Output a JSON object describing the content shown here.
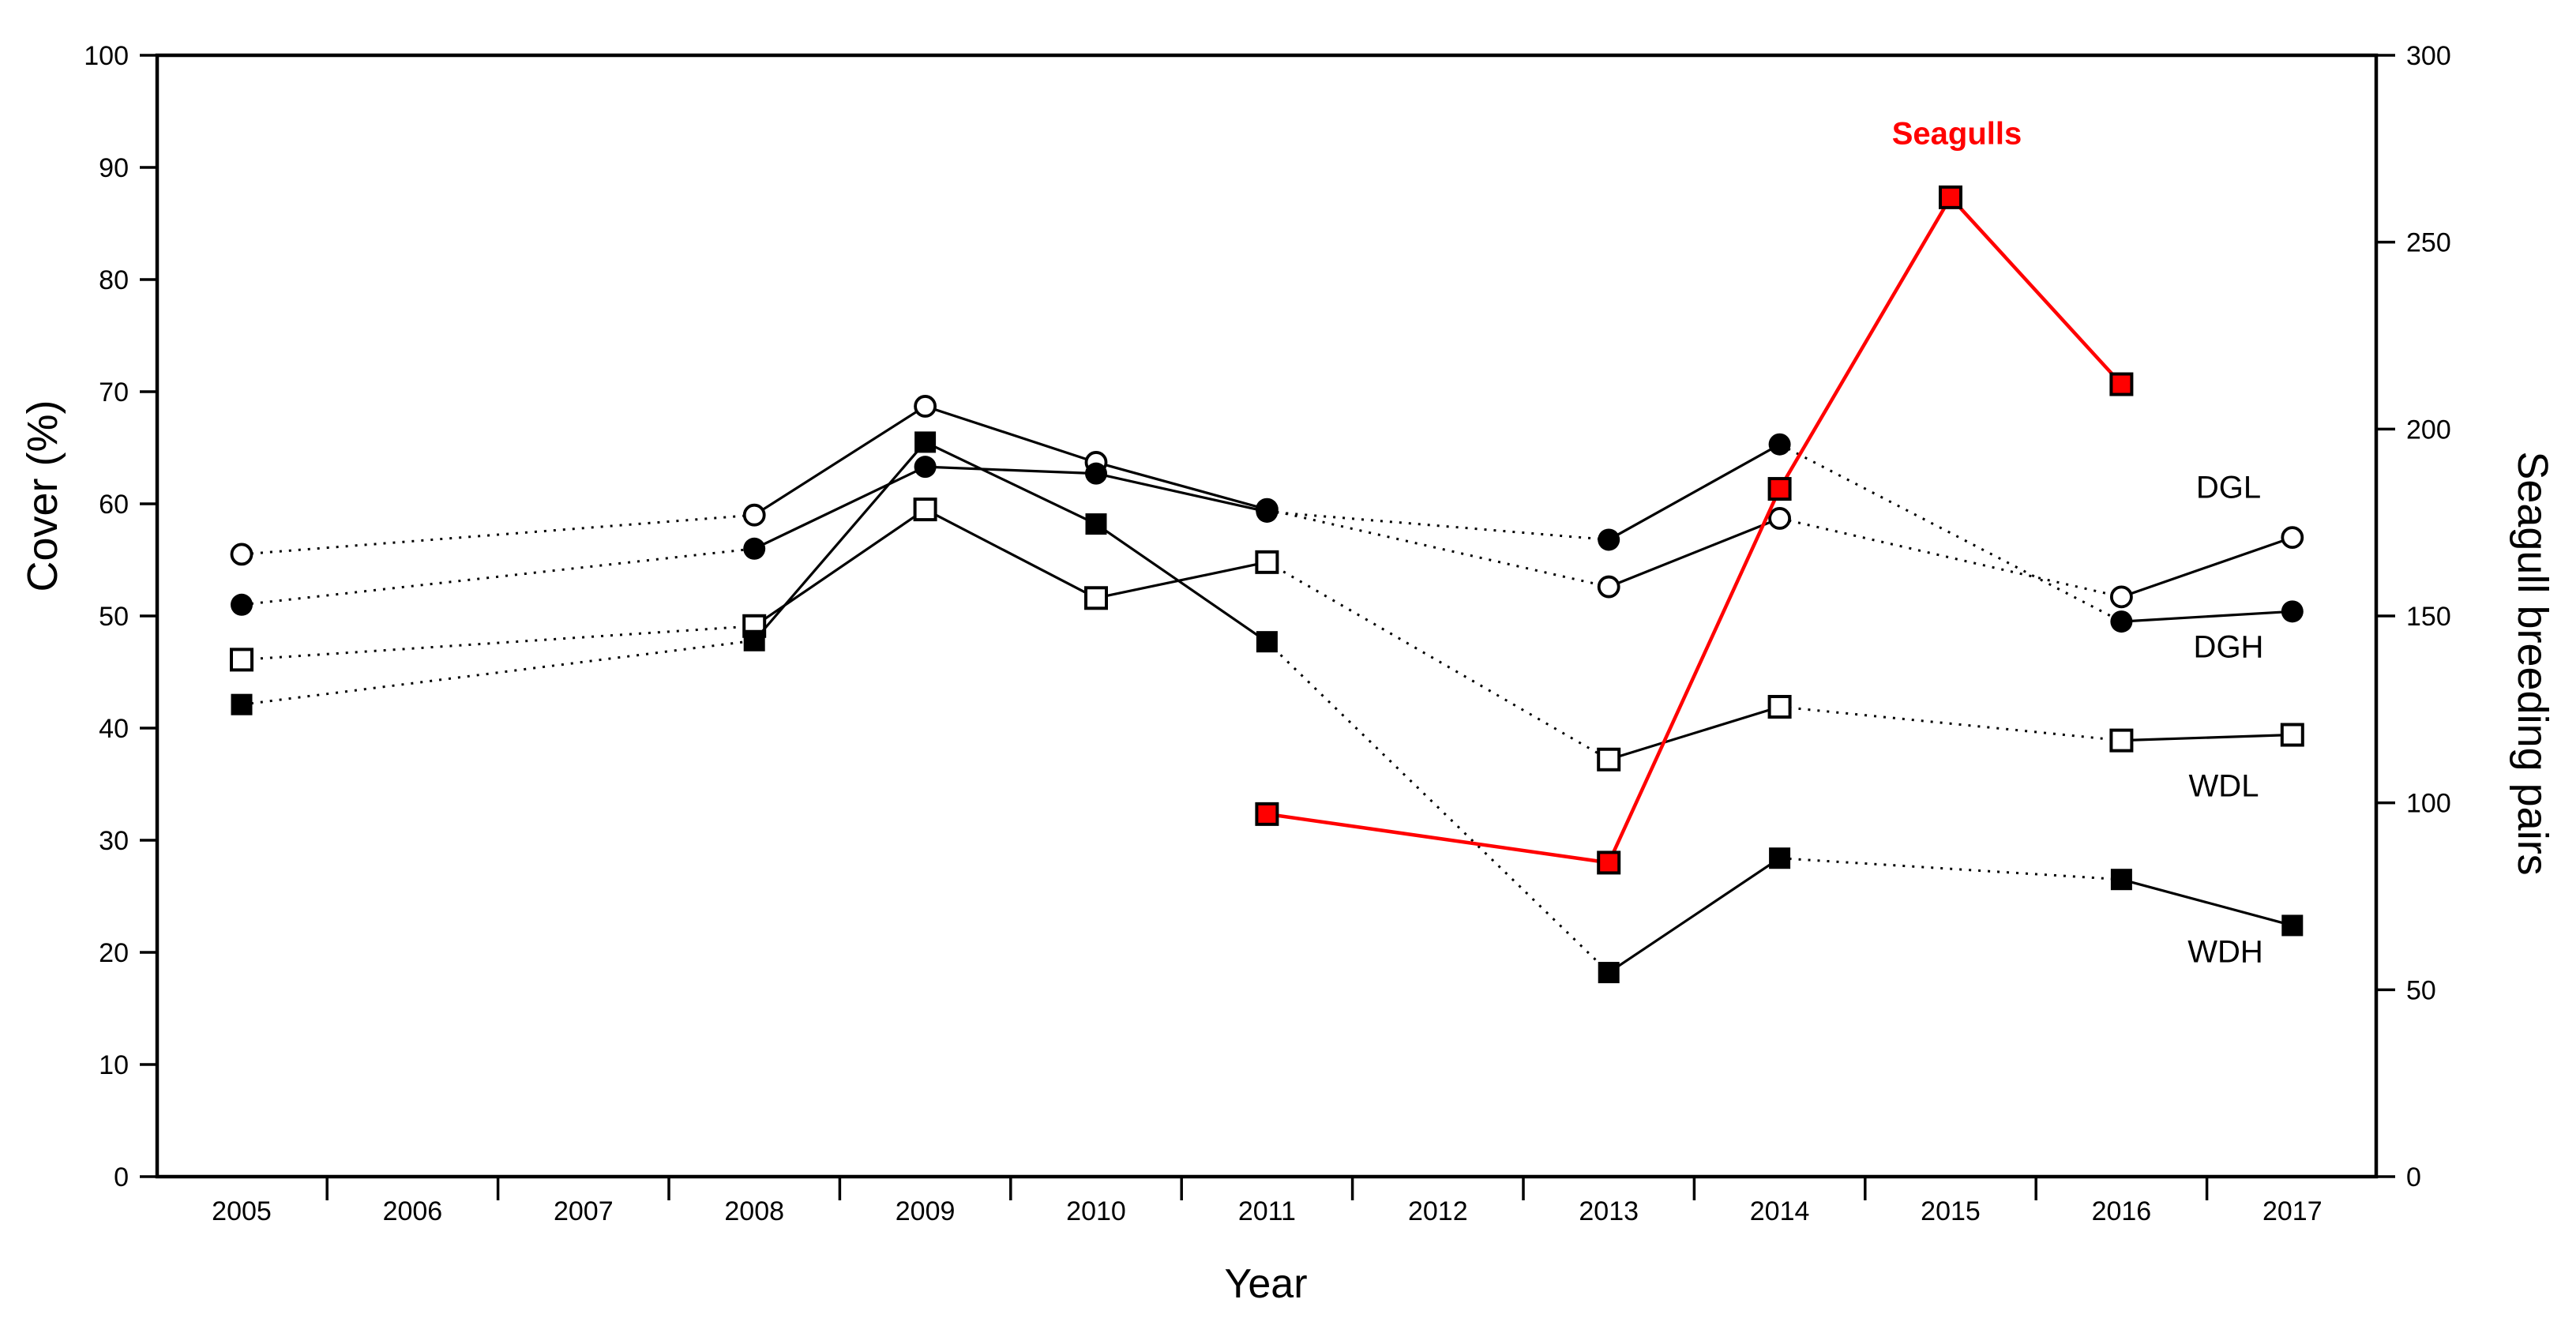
{
  "chart_data": {
    "type": "line",
    "title": "",
    "xlabel": "Year",
    "ylabel_left": "Cover (%)",
    "ylabel_right": "Seagull breeding pairs",
    "x_axis": {
      "years": [
        2005,
        2006,
        2007,
        2008,
        2009,
        2010,
        2011,
        2012,
        2013,
        2014,
        2015,
        2016,
        2017
      ],
      "tick_style": "between-years"
    },
    "left_axis": {
      "min": 0,
      "max": 100,
      "step": 10,
      "tick_labels": [
        "0",
        "10",
        "20",
        "30",
        "40",
        "50",
        "60",
        "70",
        "80",
        "90",
        "100"
      ]
    },
    "right_axis": {
      "min": 0,
      "max": 300,
      "step": 50,
      "tick_labels": [
        "0",
        "50",
        "100",
        "150",
        "200",
        "250",
        "300"
      ]
    },
    "legend_position": "inline-right-labels",
    "grid": false,
    "series": [
      {
        "name": "DGL",
        "axis": "left",
        "marker": "circle-open",
        "color": "#000000",
        "dotted_on_gaps": true,
        "points": [
          {
            "year": 2005,
            "value": 55.5
          },
          {
            "year": 2008,
            "value": 59.0
          },
          {
            "year": 2009,
            "value": 68.7
          },
          {
            "year": 2010,
            "value": 63.7
          },
          {
            "year": 2011,
            "value": 59.5
          },
          {
            "year": 2013,
            "value": 52.6
          },
          {
            "year": 2014,
            "value": 58.7
          },
          {
            "year": 2016,
            "value": 51.7
          },
          {
            "year": 2017,
            "value": 57.0
          }
        ]
      },
      {
        "name": "DGH",
        "axis": "left",
        "marker": "circle-filled",
        "color": "#000000",
        "dotted_on_gaps": true,
        "points": [
          {
            "year": 2005,
            "value": 51.0
          },
          {
            "year": 2008,
            "value": 56.0
          },
          {
            "year": 2009,
            "value": 63.3
          },
          {
            "year": 2010,
            "value": 62.7
          },
          {
            "year": 2011,
            "value": 59.3
          },
          {
            "year": 2013,
            "value": 56.8
          },
          {
            "year": 2014,
            "value": 65.3
          },
          {
            "year": 2016,
            "value": 49.5
          },
          {
            "year": 2017,
            "value": 50.4
          }
        ]
      },
      {
        "name": "WDL",
        "axis": "left",
        "marker": "square-open",
        "color": "#000000",
        "dotted_on_gaps": true,
        "points": [
          {
            "year": 2005,
            "value": 46.1
          },
          {
            "year": 2008,
            "value": 49.1
          },
          {
            "year": 2009,
            "value": 59.5
          },
          {
            "year": 2010,
            "value": 51.6
          },
          {
            "year": 2011,
            "value": 54.8
          },
          {
            "year": 2013,
            "value": 37.2
          },
          {
            "year": 2014,
            "value": 41.9
          },
          {
            "year": 2016,
            "value": 38.9
          },
          {
            "year": 2017,
            "value": 39.4
          }
        ]
      },
      {
        "name": "WDH",
        "axis": "left",
        "marker": "square-filled",
        "color": "#000000",
        "dotted_on_gaps": true,
        "points": [
          {
            "year": 2005,
            "value": 42.1
          },
          {
            "year": 2008,
            "value": 47.8
          },
          {
            "year": 2009,
            "value": 65.5
          },
          {
            "year": 2010,
            "value": 58.2
          },
          {
            "year": 2011,
            "value": 47.7
          },
          {
            "year": 2013,
            "value": 18.2
          },
          {
            "year": 2014,
            "value": 28.4
          },
          {
            "year": 2016,
            "value": 26.5
          },
          {
            "year": 2017,
            "value": 22.4
          }
        ]
      },
      {
        "name": "Seagulls",
        "axis": "right",
        "marker": "square-red",
        "color": "#ff0000",
        "dotted_on_gaps": false,
        "points": [
          {
            "year": 2011,
            "value": 97
          },
          {
            "year": 2013,
            "value": 84
          },
          {
            "year": 2014,
            "value": 184
          },
          {
            "year": 2015,
            "value": 262
          },
          {
            "year": 2016,
            "value": 212
          }
        ]
      }
    ],
    "colors": {
      "black": "#000000",
      "seagull_red": "#ff0000",
      "marker_fill_open": "#ffffff",
      "background": "#ffffff"
    }
  }
}
